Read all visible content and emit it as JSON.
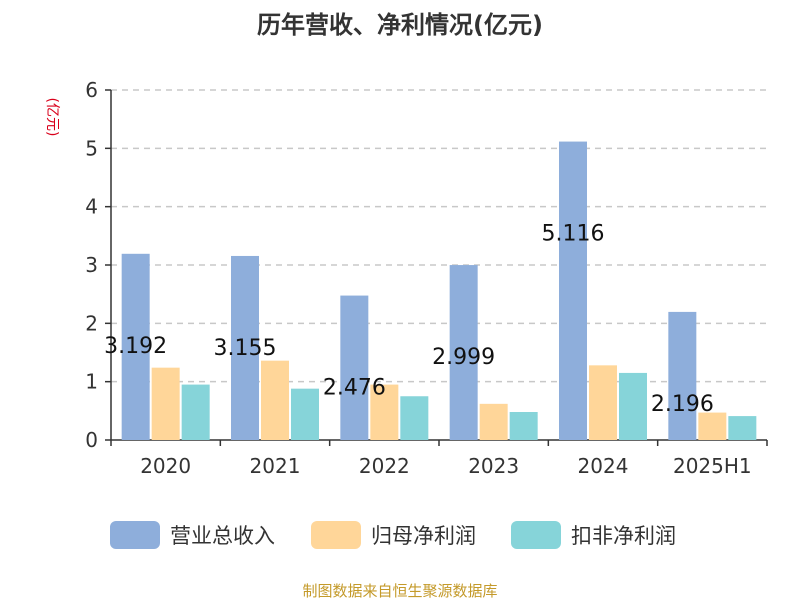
{
  "chart_data": {
    "type": "bar",
    "title": "历年营收、净利情况(亿元)",
    "unit_label": "(亿元)",
    "categories": [
      "2020",
      "2021",
      "2022",
      "2023",
      "2024",
      "2025H1"
    ],
    "ylim": [
      0,
      6
    ],
    "yticks": [
      "0",
      "1",
      "2",
      "3",
      "4",
      "5",
      "6"
    ],
    "grid": true,
    "legend_position": "bottom",
    "series": [
      {
        "name": "营业总收入",
        "color": "#8eaedb",
        "values": [
          3.192,
          3.155,
          2.476,
          2.999,
          5.116,
          2.196
        ]
      },
      {
        "name": "归母净利润",
        "color": "#ffd699",
        "values": [
          1.24,
          1.36,
          0.95,
          0.62,
          1.28,
          0.47
        ]
      },
      {
        "name": "扣非净利润",
        "color": "#86d4d9",
        "values": [
          0.95,
          0.88,
          0.75,
          0.48,
          1.15,
          0.41
        ]
      }
    ],
    "data_labels": [
      "3.192",
      "3.155",
      "2.476",
      "2.999",
      "5.116",
      "2.196"
    ],
    "source": "制图数据来自恒生聚源数据库"
  }
}
